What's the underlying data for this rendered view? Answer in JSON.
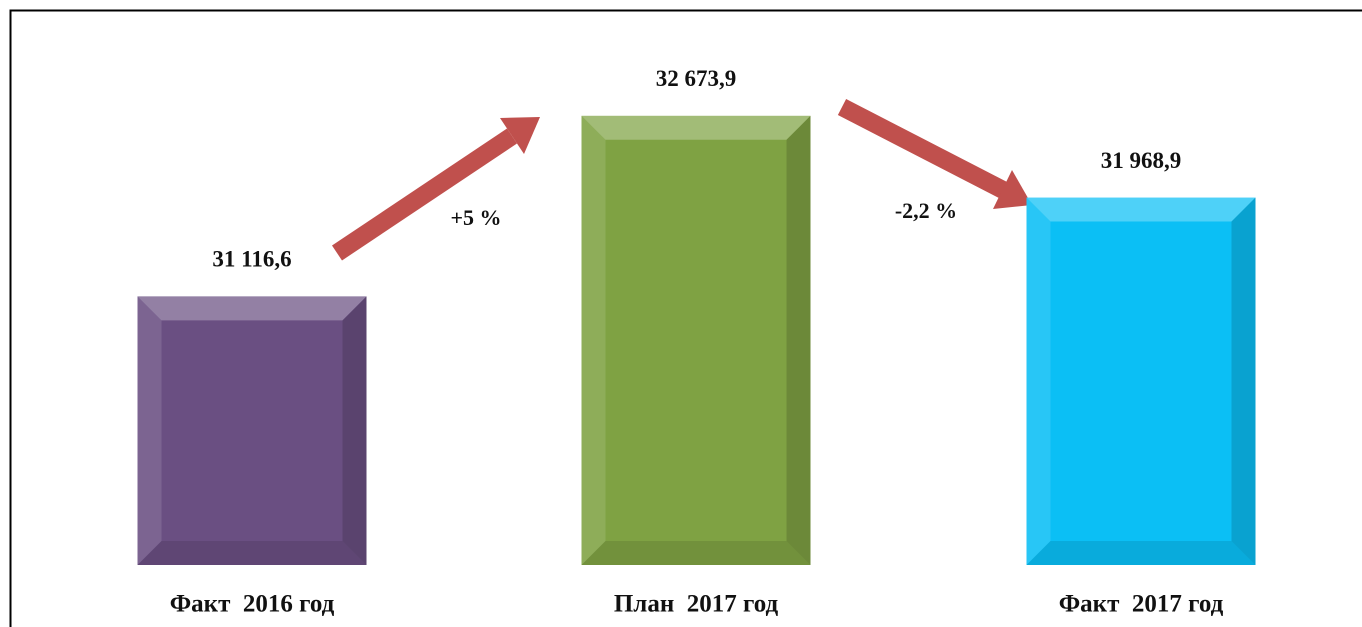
{
  "chart_data": {
    "type": "bar",
    "categories": [
      "Факт  2016 год",
      "План  2017 год",
      "Факт  2017 год"
    ],
    "values": [
      31116.6,
      32673.9,
      31968.9
    ],
    "value_labels": [
      "31 116,6",
      "32 673,9",
      "31 968,9"
    ],
    "colors": [
      "#6a4f82",
      "#7fa243",
      "#0bbff5"
    ],
    "ylim": [
      28800,
      33000
    ],
    "annotations": [
      "+5 %",
      "-2,2 %"
    ]
  }
}
